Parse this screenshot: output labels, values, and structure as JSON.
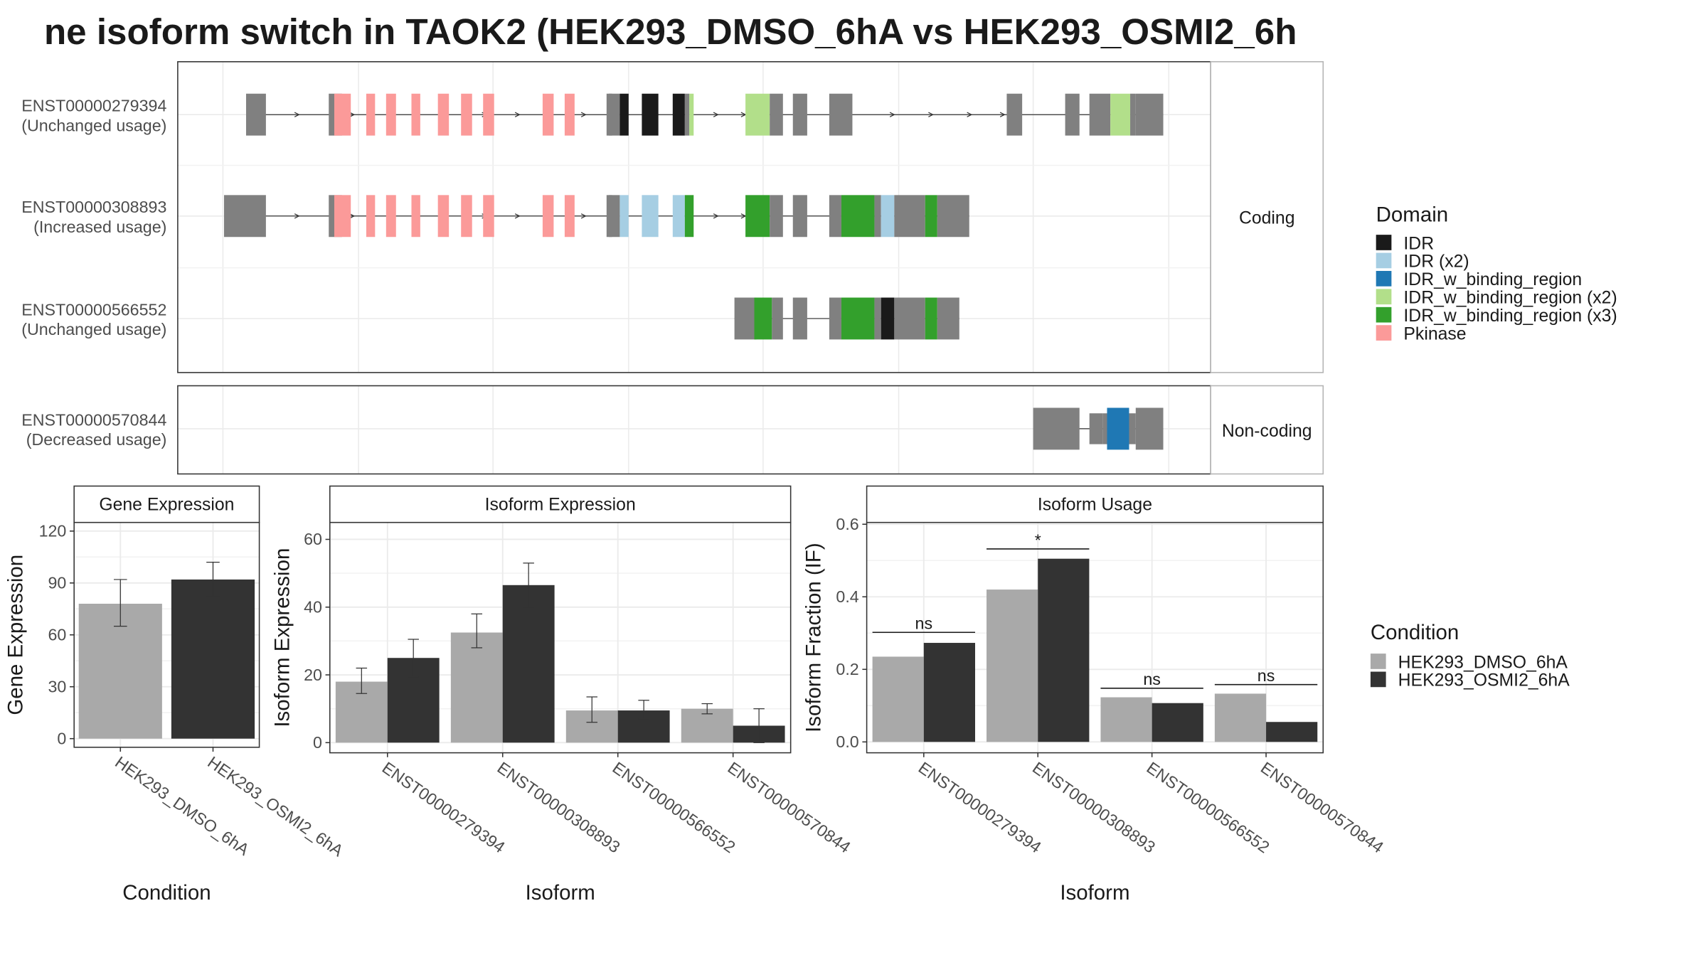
{
  "title": "ne isoform switch in TAOK2 (HEK293_DMSO_6hA vs HEK293_OSMI2_6h",
  "legend_domain": {
    "title": "Domain",
    "items": [
      {
        "label": "IDR",
        "color": "#1a1a1a"
      },
      {
        "label": "IDR (x2)",
        "color": "#a6cee3"
      },
      {
        "label": "IDR_w_binding_region",
        "color": "#1f78b4"
      },
      {
        "label": "IDR_w_binding_region (x2)",
        "color": "#b2df8a"
      },
      {
        "label": "IDR_w_binding_region (x3)",
        "color": "#33a02c"
      },
      {
        "label": "Pkinase",
        "color": "#fb9a99"
      }
    ]
  },
  "legend_condition": {
    "title": "Condition",
    "items": [
      {
        "label": "HEK293_DMSO_6hA",
        "color": "#a9a9a9"
      },
      {
        "label": "HEK293_OSMI2_6hA",
        "color": "#333333"
      }
    ]
  },
  "structure": {
    "strip_coding": "Coding",
    "strip_noncoding": "Non-coding",
    "intron_color": "#333333",
    "exon_color": "#808080",
    "transcripts": [
      {
        "id": "ENST00000279394",
        "usage": "(Unchanged usage)",
        "exons": [
          [
            223,
            241,
            "n"
          ],
          [
            298,
            310,
            "n"
          ],
          [
            303,
            318,
            "pk"
          ],
          [
            332,
            340,
            "pk"
          ],
          [
            350,
            359,
            "pk"
          ],
          [
            373,
            381,
            "pk"
          ],
          [
            397,
            407,
            "pk"
          ],
          [
            418,
            428,
            "pk"
          ],
          [
            438,
            448,
            "pk"
          ],
          [
            492,
            502,
            "pk"
          ],
          [
            512,
            521,
            "pk"
          ],
          [
            550,
            555,
            "n"
          ],
          [
            552,
            562,
            "n"
          ],
          [
            562,
            570,
            "idr"
          ],
          [
            582,
            597,
            "idr"
          ],
          [
            610,
            621,
            "idr"
          ],
          [
            621,
            625,
            "n"
          ],
          [
            625,
            629,
            "lg"
          ],
          [
            676,
            698,
            "lg"
          ],
          [
            698,
            710,
            "n"
          ],
          [
            719,
            732,
            "n"
          ],
          [
            752,
            773,
            "n"
          ],
          [
            913,
            927,
            "n"
          ],
          [
            966,
            979,
            "n"
          ],
          [
            988,
            1007,
            "n"
          ],
          [
            1007,
            1025,
            "lg"
          ],
          [
            1025,
            1030,
            "n"
          ],
          [
            1030,
            1055,
            "n"
          ]
        ],
        "arrows": [
          270,
          320,
          380,
          440,
          470,
          500,
          530,
          650,
          675,
          810,
          845,
          880,
          910
        ]
      },
      {
        "id": "ENST00000308893",
        "usage": "(Increased usage)",
        "exons": [
          [
            203,
            241,
            "n"
          ],
          [
            298,
            310,
            "n"
          ],
          [
            303,
            318,
            "pk"
          ],
          [
            332,
            340,
            "pk"
          ],
          [
            350,
            359,
            "pk"
          ],
          [
            373,
            381,
            "pk"
          ],
          [
            397,
            407,
            "pk"
          ],
          [
            418,
            428,
            "pk"
          ],
          [
            438,
            448,
            "pk"
          ],
          [
            492,
            502,
            "pk"
          ],
          [
            512,
            521,
            "pk"
          ],
          [
            550,
            555,
            "n"
          ],
          [
            552,
            562,
            "n"
          ],
          [
            562,
            570,
            "lb"
          ],
          [
            582,
            597,
            "lb"
          ],
          [
            610,
            621,
            "lb"
          ],
          [
            621,
            629,
            "dg"
          ],
          [
            676,
            698,
            "dg"
          ],
          [
            698,
            710,
            "n"
          ],
          [
            719,
            732,
            "n"
          ],
          [
            752,
            763,
            "n"
          ],
          [
            763,
            793,
            "dg"
          ],
          [
            793,
            799,
            "n"
          ],
          [
            799,
            811,
            "lb"
          ],
          [
            811,
            839,
            "n"
          ],
          [
            839,
            850,
            "dg"
          ],
          [
            850,
            879,
            "n"
          ]
        ],
        "arrows": [
          270,
          320,
          380,
          440,
          470,
          500,
          530,
          650,
          675
        ]
      },
      {
        "id": "ENST00000566552",
        "usage": "(Unchanged usage)",
        "exons": [
          [
            666,
            686,
            "n"
          ],
          [
            684,
            700,
            "dg"
          ],
          [
            700,
            710,
            "n"
          ],
          [
            719,
            732,
            "n"
          ],
          [
            752,
            763,
            "n"
          ],
          [
            763,
            793,
            "dg"
          ],
          [
            793,
            799,
            "n"
          ],
          [
            799,
            811,
            "idr"
          ],
          [
            811,
            839,
            "n"
          ],
          [
            839,
            850,
            "dg"
          ],
          [
            850,
            870,
            "n"
          ]
        ],
        "arrows": []
      },
      {
        "id": "ENST00000570844",
        "usage": "(Decreased usage)",
        "exons": [
          [
            937,
            979,
            "n"
          ],
          [
            988,
            1000,
            "n"
          ],
          [
            1000,
            1004,
            "n"
          ],
          [
            1004,
            1024,
            "db"
          ],
          [
            1024,
            1030,
            "n"
          ],
          [
            1030,
            1055,
            "n"
          ]
        ],
        "arrows": []
      }
    ]
  },
  "chart_data": [
    {
      "type": "bar",
      "title": "Gene Expression",
      "xlabel": "Condition",
      "ylabel": "Gene Expression",
      "ylim": [
        -5,
        125
      ],
      "yticks": [
        0,
        30,
        60,
        90,
        120
      ],
      "categories": [
        "HEK293_DMSO_6hA",
        "HEK293_OSMI2_6hA"
      ],
      "values": [
        78,
        92
      ],
      "error_low": [
        65,
        82
      ],
      "error_high": [
        92,
        102
      ],
      "colors": [
        "#a9a9a9",
        "#333333"
      ]
    },
    {
      "type": "bar",
      "title": "Isoform Expression",
      "xlabel": "Isoform",
      "ylabel": "Isoform Expression",
      "ylim": [
        -3,
        65
      ],
      "yticks": [
        0,
        20,
        40,
        60
      ],
      "categories": [
        "ENST00000279394",
        "ENST00000308893",
        "ENST00000566552",
        "ENST00000570844"
      ],
      "series": [
        {
          "name": "HEK293_DMSO_6hA",
          "values": [
            18,
            32.5,
            9.5,
            10
          ],
          "error_low": [
            14.5,
            28,
            6,
            8.5
          ],
          "error_high": [
            22,
            38,
            13.5,
            11.5
          ]
        },
        {
          "name": "HEK293_OSMI2_6hA",
          "values": [
            25,
            46.5,
            9.5,
            5
          ],
          "error_low": [
            19.5,
            40,
            7,
            0
          ],
          "error_high": [
            30.5,
            53,
            12.5,
            10
          ]
        }
      ]
    },
    {
      "type": "bar",
      "title": "Isoform Usage",
      "xlabel": "Isoform",
      "ylabel": "Isoform Fraction (IF)",
      "ylim": [
        -0.03,
        0.605
      ],
      "yticks": [
        "0.0",
        "0.2",
        "0.4",
        "0.6"
      ],
      "categories": [
        "ENST00000279394",
        "ENST00000308893",
        "ENST00000566552",
        "ENST00000570844"
      ],
      "series": [
        {
          "name": "HEK293_DMSO_6hA",
          "values": [
            0.235,
            0.42,
            0.123,
            0.133
          ]
        },
        {
          "name": "HEK293_OSMI2_6hA",
          "values": [
            0.273,
            0.505,
            0.107,
            0.055
          ]
        }
      ],
      "significance": [
        {
          "label": "ns",
          "y": 0.302
        },
        {
          "label": "*",
          "y": 0.532
        },
        {
          "label": "ns",
          "y": 0.148
        },
        {
          "label": "ns",
          "y": 0.158
        }
      ]
    }
  ]
}
